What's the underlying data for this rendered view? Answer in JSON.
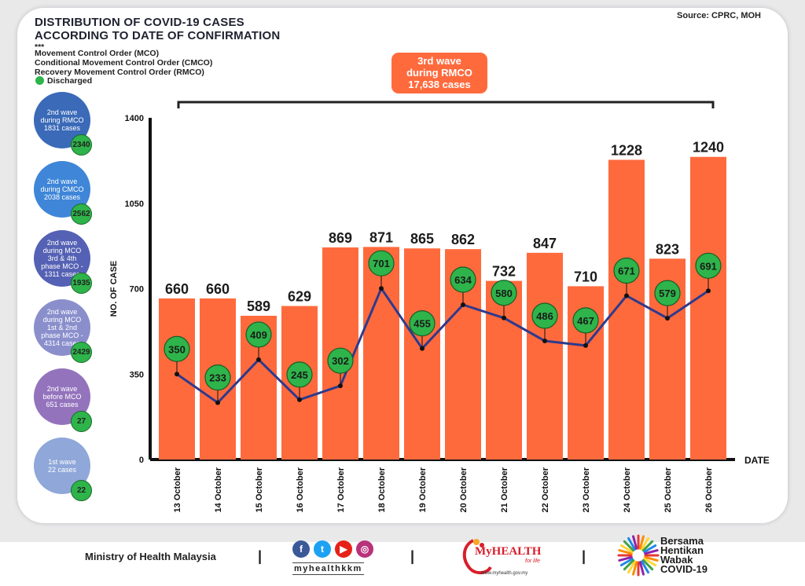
{
  "header": {
    "title_line1": "DISTRIBUTION OF COVID-19 CASES",
    "title_line2": "ACCORDING TO DATE OF CONFIRMATION",
    "source": "Source: CPRC, MOH"
  },
  "legend": {
    "stars": "***",
    "mco": "Movement Control Order (MCO)",
    "cmco": "Conditional Movement Control Order (CMCO)",
    "rmco": "Recovery Movement Control Order (RMCO)",
    "discharged": "Discharged"
  },
  "wave_banner": {
    "line1": "3rd wave",
    "line2": "during RMCO",
    "line3": "17,638 cases"
  },
  "waves": [
    {
      "lines": [
        "2nd wave",
        "during RMCO",
        "1831 cases"
      ],
      "discharged": "2340",
      "color": "#3a6ab8"
    },
    {
      "lines": [
        "2nd wave",
        "during CMCO",
        "2038 cases"
      ],
      "discharged": "2562",
      "color": "#3f86d8"
    },
    {
      "lines": [
        "2nd wave",
        "during MCO",
        "3rd & 4th",
        "phase MCO -",
        "1311 cases"
      ],
      "discharged": "1935",
      "color": "#5561b4"
    },
    {
      "lines": [
        "2nd wave",
        "during MCO",
        "1st & 2nd",
        "phase MCO -",
        "4314 cases"
      ],
      "discharged": "2429",
      "color": "#8a8fcc"
    },
    {
      "lines": [
        "2nd wave",
        "before MCO",
        "651 cases"
      ],
      "discharged": "27",
      "color": "#9473bd"
    },
    {
      "lines": [
        "1st wave",
        "22 cases"
      ],
      "discharged": "22",
      "color": "#8fa7d9"
    }
  ],
  "chart_data": {
    "type": "bar",
    "categories": [
      "13 October",
      "14 October",
      "15 October",
      "16 October",
      "17 October",
      "18 October",
      "19 October",
      "20 October",
      "21 October",
      "22 October",
      "23 October",
      "24 October",
      "25 October",
      "26 October"
    ],
    "series": [
      {
        "name": "",
        "type": "bar",
        "values": [
          660,
          660,
          589,
          629,
          869,
          871,
          865,
          862,
          732,
          847,
          710,
          1228,
          823,
          1240
        ],
        "color": "#ff6a3d"
      },
      {
        "name": "Discharged",
        "type": "line",
        "values": [
          350,
          233,
          409,
          245,
          302,
          701,
          455,
          634,
          580,
          486,
          467,
          671,
          579,
          691
        ],
        "color": "#2e3a8c",
        "marker_color": "#2eb44a"
      }
    ],
    "ylabel": "NO. OF CASE",
    "xlabel": "DATE",
    "ylim": [
      0,
      1400
    ],
    "yticks": [
      0,
      350,
      700,
      1050,
      1400
    ],
    "grid": false
  },
  "footer": {
    "ministry": "Ministry of Health Malaysia",
    "separator": "|",
    "social_handle": "myhealthkkm",
    "social_icons": [
      "facebook-icon",
      "twitter-icon",
      "youtube-icon",
      "instagram-icon"
    ],
    "myhealth_name": "MyHEALTH",
    "myhealth_tagline": "for life",
    "myhealth_url": "www.myhealth.gov.my",
    "campaign_line1": "Bersama",
    "campaign_line2": "Hentikan",
    "campaign_line3": "Wabak",
    "campaign_line4": "COVID-19"
  }
}
